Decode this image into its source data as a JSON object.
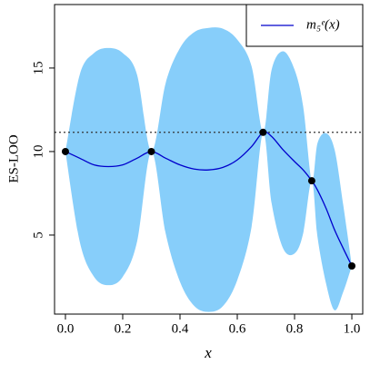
{
  "chart_data": {
    "type": "line",
    "y_label": "ES-LOO",
    "x_label": "x",
    "xlim": [
      -0.038,
      1.038
    ],
    "ylim": [
      0.27,
      18.8
    ],
    "xticks": [
      {
        "value": 0,
        "label": "0.0"
      },
      {
        "value": 0.2,
        "label": "0.2"
      },
      {
        "value": 0.4,
        "label": "0.4"
      },
      {
        "value": 0.6,
        "label": "0.6"
      },
      {
        "value": 0.8,
        "label": "0.8"
      },
      {
        "value": 1,
        "label": "1.0"
      }
    ],
    "yticks": [
      5,
      10,
      15
    ],
    "x": [
      0,
      0.05,
      0.1,
      0.15,
      0.2,
      0.25,
      0.3,
      0.35,
      0.4,
      0.45,
      0.5,
      0.55,
      0.6,
      0.65,
      0.69,
      0.72,
      0.76,
      0.8,
      0.83,
      0.86,
      0.88,
      0.91,
      0.94,
      0.97,
      1.0
    ],
    "series": [
      {
        "name": "m₅ᵉ(x)",
        "color": "#0000cc",
        "values": [
          10,
          9.6,
          9.2,
          9.1,
          9.2,
          9.6,
          10,
          9.6,
          9.2,
          8.95,
          8.9,
          9.05,
          9.5,
          10.3,
          11.15,
          10.9,
          10.1,
          9.4,
          8.9,
          8.25,
          7.7,
          6.6,
          5.3,
          4.2,
          3.15
        ]
      }
    ],
    "band": {
      "color": "#87cefa",
      "upper": [
        10,
        14.6,
        15.9,
        16.2,
        15.9,
        14.6,
        10,
        14.1,
        16.2,
        17.15,
        17.4,
        17.35,
        16.7,
        15.1,
        11.15,
        14.9,
        16.0,
        14.9,
        12.7,
        8.25,
        10.5,
        11.1,
        10.1,
        6.8,
        3.15
      ],
      "lower": [
        10,
        4.6,
        2.5,
        2.0,
        2.5,
        4.6,
        10,
        5.1,
        2.2,
        0.75,
        0.4,
        0.75,
        2.3,
        5.5,
        11.15,
        6.9,
        4.2,
        3.9,
        5.1,
        8.25,
        4.9,
        2.1,
        0.5,
        1.6,
        3.15
      ]
    },
    "points": {
      "color": "#000000",
      "x": [
        0,
        0.3,
        0.69,
        0.86,
        1.0
      ],
      "y": [
        10,
        10,
        11.15,
        8.25,
        3.15
      ]
    },
    "hline": {
      "value": 11.15,
      "color": "#333333"
    },
    "legend": "top-right"
  }
}
